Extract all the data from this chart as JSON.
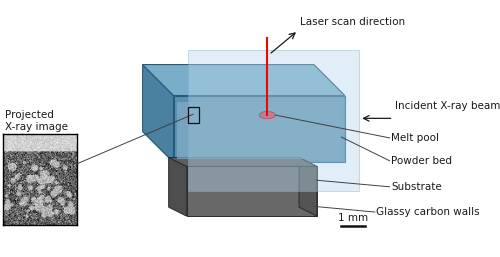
{
  "bg_color": "#ffffff",
  "labels": {
    "laser_scan": "Laser scan direction",
    "xray_beam": "Incident X-ray beam",
    "melt_pool": "Melt pool",
    "powder_bed": "Powder bed",
    "substrate": "Substrate",
    "glassy_carbon": "Glassy carbon walls",
    "projected": "Projected\nX-ray image",
    "scale_bar": "1 mm"
  },
  "colors": {
    "box_top_face": "#7aadc8",
    "box_side_face": "#4a7fa0",
    "box_front_face": "#5a90b0",
    "xray_plane": "#a8cfe0",
    "xray_plane_alpha": 0.5,
    "substrate_dark": "#505050",
    "substrate_mid": "#606060",
    "substrate_light": "#707070",
    "laser_red": "#ff0000",
    "melt_pink": "#d0909a",
    "annotation_line": "#404040",
    "text_color": "#1a1a1a",
    "inset_border": "#000000"
  },
  "font_size": 7.5,
  "arrow_font_size": 7.5
}
